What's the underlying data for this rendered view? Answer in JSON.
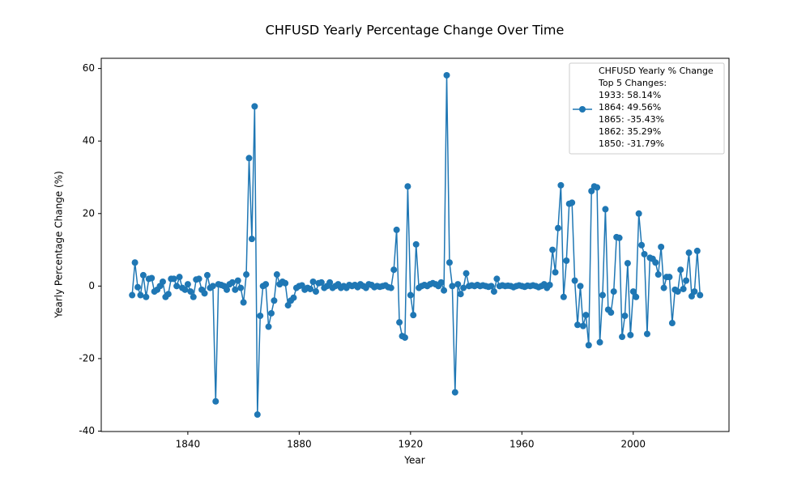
{
  "chart_data": {
    "type": "line",
    "title": "CHFUSD Yearly Percentage Change Over Time",
    "xlabel": "Year",
    "ylabel": "Yearly Percentage Change (%)",
    "x": [
      1820,
      1821,
      1822,
      1823,
      1824,
      1825,
      1826,
      1827,
      1828,
      1829,
      1830,
      1831,
      1832,
      1833,
      1834,
      1835,
      1836,
      1837,
      1838,
      1839,
      1840,
      1841,
      1842,
      1843,
      1844,
      1845,
      1846,
      1847,
      1848,
      1849,
      1850,
      1851,
      1852,
      1853,
      1854,
      1855,
      1856,
      1857,
      1858,
      1859,
      1860,
      1861,
      1862,
      1863,
      1864,
      1865,
      1866,
      1867,
      1868,
      1869,
      1870,
      1871,
      1872,
      1873,
      1874,
      1875,
      1876,
      1877,
      1878,
      1879,
      1880,
      1881,
      1882,
      1883,
      1884,
      1885,
      1886,
      1887,
      1888,
      1889,
      1890,
      1891,
      1892,
      1893,
      1894,
      1895,
      1896,
      1897,
      1898,
      1899,
      1900,
      1901,
      1902,
      1903,
      1904,
      1905,
      1906,
      1907,
      1908,
      1909,
      1910,
      1911,
      1912,
      1913,
      1914,
      1915,
      1916,
      1917,
      1918,
      1919,
      1920,
      1921,
      1922,
      1923,
      1924,
      1925,
      1926,
      1927,
      1928,
      1929,
      1930,
      1931,
      1932,
      1933,
      1934,
      1935,
      1936,
      1937,
      1938,
      1939,
      1940,
      1941,
      1942,
      1943,
      1944,
      1945,
      1946,
      1947,
      1948,
      1949,
      1950,
      1951,
      1952,
      1953,
      1954,
      1955,
      1956,
      1957,
      1958,
      1959,
      1960,
      1961,
      1962,
      1963,
      1964,
      1965,
      1966,
      1967,
      1968,
      1969,
      1970,
      1971,
      1972,
      1973,
      1974,
      1975,
      1976,
      1977,
      1978,
      1979,
      1980,
      1981,
      1982,
      1983,
      1984,
      1985,
      1986,
      1987,
      1988,
      1989,
      1990,
      1991,
      1992,
      1993,
      1994,
      1995,
      1996,
      1997,
      1998,
      1999,
      2000,
      2001,
      2002,
      2003,
      2004,
      2005,
      2006,
      2007,
      2008,
      2009,
      2010,
      2011,
      2012,
      2013,
      2014,
      2015,
      2016,
      2017,
      2018,
      2019,
      2020,
      2021,
      2022,
      2023,
      2024
    ],
    "series": [
      {
        "name": "CHFUSD Yearly % Change\nTop 5 Changes:\n1933: 58.14%\n1864: 49.56%\n1865: -35.43%\n1862: 35.29%\n1850: -31.79%",
        "color": "#1f77b4",
        "values": [
          -2.5,
          6.5,
          -0.3,
          -2.5,
          3,
          -3,
          2,
          2.2,
          -1.5,
          -1,
          0,
          1.2,
          -3,
          -2.2,
          2,
          2,
          0,
          2.5,
          -0.5,
          -1,
          0.5,
          -1.5,
          -3,
          1.8,
          2,
          -1,
          -2,
          3,
          -0.5,
          0,
          -31.79,
          0.5,
          0.3,
          0,
          -1,
          0.5,
          1,
          -1,
          1.5,
          -0.5,
          -4.5,
          3.2,
          35.29,
          13,
          49.56,
          -35.43,
          -8.2,
          0,
          0.5,
          -11.2,
          -7.5,
          -4,
          3.2,
          0.5,
          1.2,
          0.8,
          -5.3,
          -4,
          -3.2,
          -0.5,
          0,
          0.2,
          -1,
          -0.5,
          -0.8,
          1.2,
          -1.5,
          0.8,
          1,
          -0.5,
          0,
          1,
          -0.5,
          0,
          0.5,
          -0.5,
          0,
          -0.5,
          0.3,
          0,
          0.3,
          -0.3,
          0.5,
          0,
          -0.5,
          0.5,
          0.3,
          -0.3,
          0,
          -0.2,
          0,
          0.2,
          -0.3,
          -0.5,
          4.5,
          15.5,
          -10,
          -13.8,
          -14.2,
          27.5,
          -2.5,
          -8,
          11.5,
          -0.5,
          0,
          0.3,
          0,
          0.5,
          0.8,
          0.5,
          0,
          1,
          -1.2,
          58.14,
          6.5,
          0,
          -29.3,
          0.5,
          -2.2,
          -0.5,
          3.5,
          0,
          0.2,
          0,
          0.3,
          0,
          0.2,
          0,
          -0.2,
          0,
          -1.5,
          2,
          0,
          0.2,
          0,
          0.1,
          0,
          -0.3,
          0,
          0.2,
          0,
          -0.2,
          0.1,
          0,
          0.2,
          0,
          -0.3,
          0,
          0.5,
          -0.5,
          0.3,
          10,
          3.8,
          16,
          27.8,
          -3,
          7,
          22.7,
          23,
          1.5,
          -10.7,
          0,
          -11,
          -8,
          -16.3,
          26.2,
          27.5,
          27.2,
          -15.5,
          -2.5,
          21.2,
          -6.5,
          -7.3,
          -1.5,
          13.5,
          13.3,
          -14,
          -8.2,
          6.3,
          -13.5,
          -1.5,
          -3,
          20,
          11.3,
          8.8,
          -13.2,
          7.8,
          7.5,
          6.5,
          3.2,
          10.8,
          -0.5,
          2.5,
          2.5,
          -10.2,
          -1,
          -1.5,
          4.5,
          -0.8,
          1.5,
          9.2,
          -2.8,
          -1.5,
          9.7,
          -2.5
        ]
      }
    ],
    "xlim": [
      1808.9,
      2034.4
    ],
    "xticks": [
      1840,
      1880,
      1920,
      1960,
      2000
    ],
    "ylim": [
      -40.11,
      62.82
    ],
    "yticks": [
      -40,
      -20,
      0,
      20,
      40,
      60
    ],
    "grid": false,
    "legend": "upper right"
  }
}
